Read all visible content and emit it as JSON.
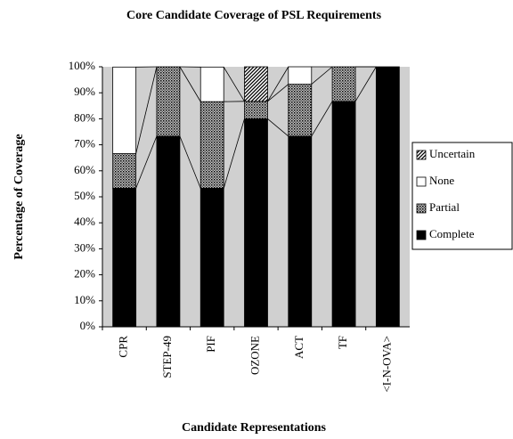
{
  "chart_data": {
    "type": "stacked_bar",
    "title": "Core Candidate Coverage of PSL Requirements",
    "xlabel": "Candidate Representations",
    "ylabel": "Percentage of Coverage",
    "categories": [
      "CPR",
      "STEP-49",
      "PIF",
      "OZONE",
      "ACT",
      "TF",
      "<I-N-OVA>"
    ],
    "series": [
      {
        "name": "Complete",
        "color": "#000000",
        "values": [
          53.3,
          73.3,
          53.3,
          80,
          73.3,
          86.7,
          100
        ]
      },
      {
        "name": "Partial",
        "color": "#808080",
        "values": [
          13.3,
          26.7,
          33.3,
          6.7,
          20,
          13.3,
          0
        ]
      },
      {
        "name": "None",
        "color": "#ffffff",
        "values": [
          33.3,
          0,
          13.3,
          0,
          6.7,
          0,
          0
        ]
      },
      {
        "name": "Uncertain",
        "color": "#404040",
        "values": [
          0,
          0,
          0,
          13.3,
          0,
          0,
          0
        ]
      }
    ],
    "ylim": [
      0,
      100
    ],
    "yticks": [
      {
        "value": 0,
        "label": "0%"
      },
      {
        "value": 10,
        "label": "10%"
      },
      {
        "value": 20,
        "label": "20%"
      },
      {
        "value": 30,
        "label": "30%"
      },
      {
        "value": 40,
        "label": "40%"
      },
      {
        "value": 50,
        "label": "50%"
      },
      {
        "value": 60,
        "label": "60%"
      },
      {
        "value": 70,
        "label": "70%"
      },
      {
        "value": 80,
        "label": "80%"
      },
      {
        "value": 90,
        "label": "90%"
      },
      {
        "value": 100,
        "label": "100%"
      }
    ],
    "legend": "right"
  }
}
